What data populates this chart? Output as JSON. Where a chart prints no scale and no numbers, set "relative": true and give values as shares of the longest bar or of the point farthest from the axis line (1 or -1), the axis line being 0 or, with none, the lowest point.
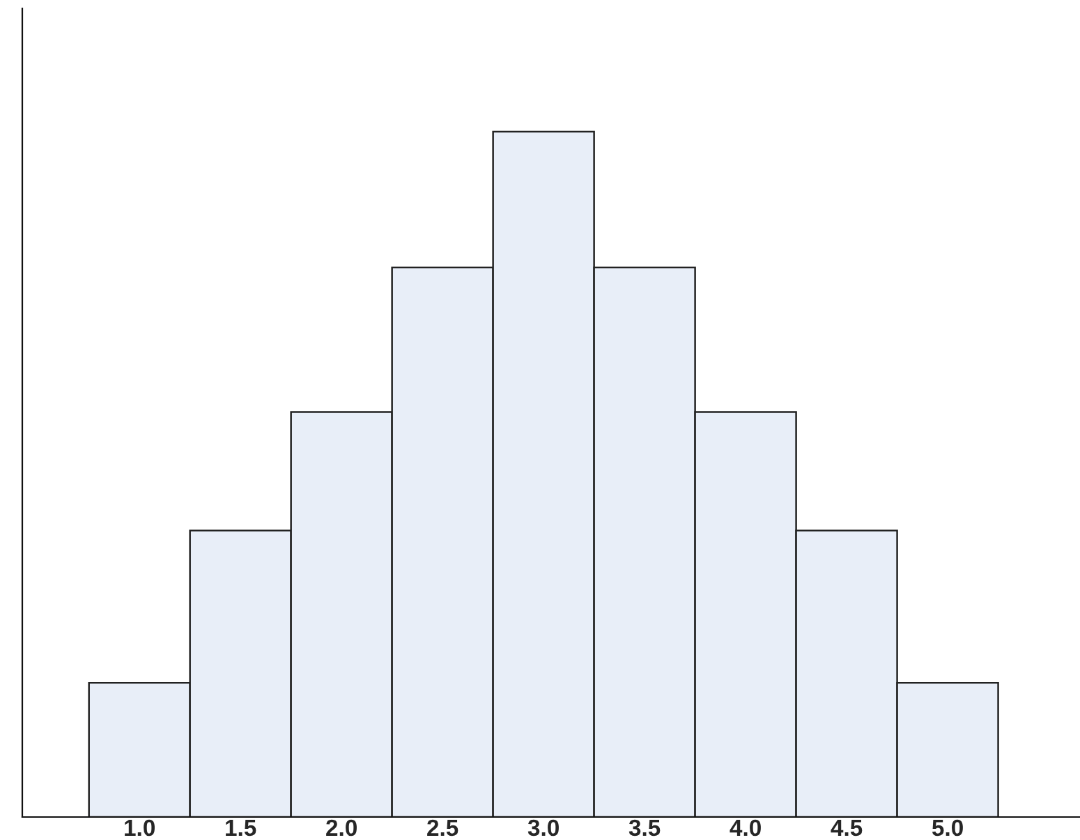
{
  "chart_data": {
    "type": "bar",
    "relative": true,
    "categories": [
      "1.0",
      "1.5",
      "2.0",
      "2.5",
      "3.0",
      "3.5",
      "4.0",
      "4.5",
      "5.0"
    ],
    "values": [
      0.196,
      0.418,
      0.591,
      0.802,
      1,
      0.802,
      0.591,
      0.418,
      0.196
    ],
    "color": "#e8eef8"
  }
}
